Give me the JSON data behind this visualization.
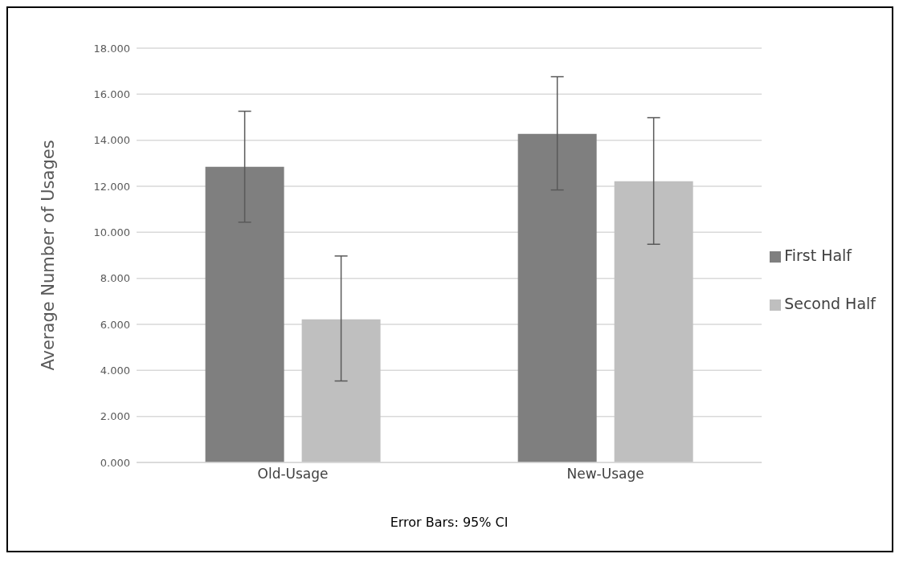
{
  "chart_data": {
    "type": "bar",
    "xlabel": "Error Bars: 95% CI",
    "ylabel": "Average Number of Usages",
    "categories": [
      "Old-Usage",
      "New-Usage"
    ],
    "series": [
      {
        "name": "First Half",
        "color": "#7f7f7f",
        "values": [
          12.85,
          14.28
        ],
        "errors": [
          [
            10.44,
            15.26
          ],
          [
            11.84,
            16.76
          ]
        ]
      },
      {
        "name": "Second Half",
        "color": "#bfbfbf",
        "values": [
          6.22,
          12.22
        ],
        "errors": [
          [
            3.54,
            8.97
          ],
          [
            9.48,
            14.98
          ]
        ]
      }
    ],
    "ylim": [
      0,
      18
    ],
    "yticks": [
      {
        "value": 0,
        "label": "0.000"
      },
      {
        "value": 2,
        "label": "2.000"
      },
      {
        "value": 4,
        "label": "4.000"
      },
      {
        "value": 6,
        "label": "6.000"
      },
      {
        "value": 8,
        "label": "8.000"
      },
      {
        "value": 10,
        "label": "10.000"
      },
      {
        "value": 12,
        "label": "12.000"
      },
      {
        "value": 14,
        "label": "14.000"
      },
      {
        "value": 16,
        "label": "16.000"
      },
      {
        "value": 18,
        "label": "18.000"
      }
    ],
    "grid": "y",
    "legend": "right"
  }
}
